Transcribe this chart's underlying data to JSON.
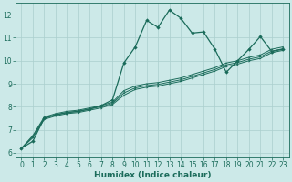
{
  "xlabel": "Humidex (Indice chaleur)",
  "bg_color": "#cce9e8",
  "grid_color": "#aacfce",
  "line_color": "#1a6b5a",
  "xlim": [
    -0.5,
    23.5
  ],
  "ylim": [
    5.8,
    12.5
  ],
  "x_ticks": [
    0,
    1,
    2,
    3,
    4,
    5,
    6,
    7,
    8,
    9,
    10,
    11,
    12,
    13,
    14,
    15,
    16,
    17,
    18,
    19,
    20,
    21,
    22,
    23
  ],
  "y_ticks": [
    6,
    7,
    8,
    9,
    10,
    11,
    12
  ],
  "series": {
    "line1_x": [
      0,
      1,
      2,
      3,
      4,
      5,
      6,
      7,
      8,
      9,
      10,
      11,
      12,
      13,
      14,
      15,
      16,
      17,
      18,
      19,
      20,
      21,
      22,
      23
    ],
    "line1_y": [
      6.2,
      6.5,
      7.5,
      7.65,
      7.75,
      7.8,
      7.9,
      8.05,
      8.3,
      9.9,
      10.6,
      11.75,
      11.45,
      12.2,
      11.85,
      11.2,
      11.25,
      10.5,
      9.5,
      10.0,
      10.5,
      11.05,
      10.4,
      10.5
    ],
    "line2_x": [
      0,
      1,
      2,
      3,
      4,
      5,
      6,
      7,
      8,
      9,
      10,
      11,
      12,
      13,
      14,
      15,
      16,
      17,
      18,
      19,
      20,
      21,
      22,
      23
    ],
    "line2_y": [
      6.2,
      6.65,
      7.45,
      7.6,
      7.7,
      7.75,
      7.85,
      7.95,
      8.1,
      8.5,
      8.75,
      8.85,
      8.9,
      9.0,
      9.1,
      9.25,
      9.4,
      9.55,
      9.75,
      9.85,
      10.0,
      10.1,
      10.35,
      10.45
    ],
    "line3_x": [
      0,
      1,
      2,
      3,
      4,
      5,
      6,
      7,
      8,
      9,
      10,
      11,
      12,
      13,
      14,
      15,
      16,
      17,
      18,
      19,
      20,
      21,
      22,
      23
    ],
    "line3_y": [
      6.2,
      6.7,
      7.5,
      7.65,
      7.75,
      7.8,
      7.9,
      8.0,
      8.15,
      8.6,
      8.82,
      8.92,
      8.97,
      9.07,
      9.17,
      9.32,
      9.47,
      9.62,
      9.82,
      9.92,
      10.07,
      10.17,
      10.42,
      10.52
    ],
    "line4_x": [
      0,
      1,
      2,
      3,
      4,
      5,
      6,
      7,
      8,
      9,
      10,
      11,
      12,
      13,
      14,
      15,
      16,
      17,
      18,
      19,
      20,
      21,
      22,
      23
    ],
    "line4_y": [
      6.2,
      6.75,
      7.55,
      7.7,
      7.8,
      7.85,
      7.95,
      8.05,
      8.2,
      8.7,
      8.9,
      9.0,
      9.05,
      9.15,
      9.25,
      9.4,
      9.55,
      9.7,
      9.9,
      10.0,
      10.15,
      10.25,
      10.5,
      10.6
    ]
  }
}
